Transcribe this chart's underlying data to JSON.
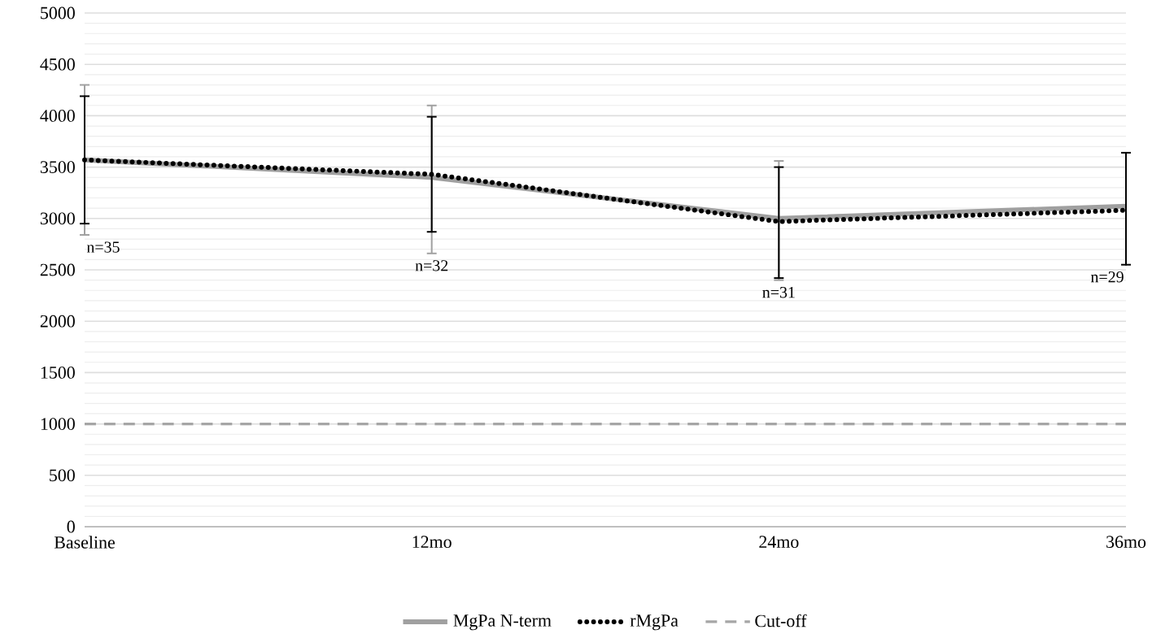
{
  "chart_data": {
    "type": "line",
    "categories": [
      "Baseline",
      "12mo",
      "24mo",
      "36mo"
    ],
    "series": [
      {
        "name": "MgPa N-term",
        "color": "#a0a0a0",
        "line_style": "solid",
        "values": [
          3570,
          3400,
          3000,
          3120
        ],
        "errors": [
          [
            2840,
            4300
          ],
          [
            2660,
            4100
          ],
          [
            2400,
            3560
          ],
          null
        ]
      },
      {
        "name": "rMgPa",
        "color": "#000000",
        "line_style": "dotted",
        "values": [
          3570,
          3430,
          2970,
          3080
        ],
        "errors": [
          [
            2950,
            4190
          ],
          [
            2870,
            3990
          ],
          [
            2420,
            3500
          ],
          [
            2550,
            3640
          ]
        ]
      }
    ],
    "ref_lines": [
      {
        "axis": "y",
        "value": 1000,
        "label": "Cut-off",
        "color": "#a6a6a6",
        "line_style": "dashed"
      }
    ],
    "annotations": [
      "n=35",
      "n=32",
      "n=31",
      "n=29"
    ],
    "ylim": [
      0,
      5000
    ],
    "yticks": [
      0,
      500,
      1000,
      1500,
      2000,
      2500,
      3000,
      3500,
      4000,
      4500,
      5000
    ],
    "grid": "y",
    "legend": "bottom",
    "marker": "none"
  }
}
